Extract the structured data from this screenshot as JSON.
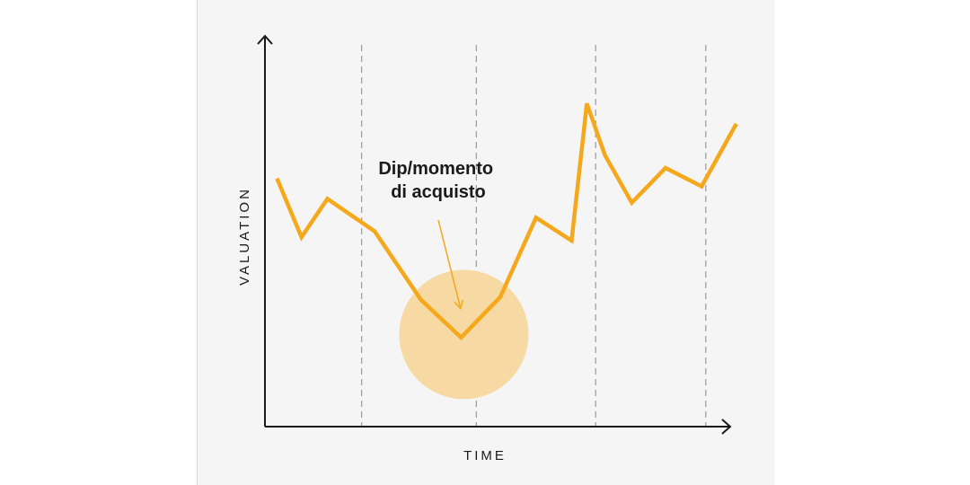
{
  "colors": {
    "line": "#f5a81c",
    "highlight": "#f7d9a4",
    "axis": "#1a1a1a",
    "guide": "#a0a0a0",
    "panel": "#f5f5f5"
  },
  "chart_data": {
    "type": "line",
    "xlabel": "TIME",
    "ylabel": "VALUATION",
    "xlim": [
      0,
      100
    ],
    "ylim": [
      0,
      100
    ],
    "grid": false,
    "series": [
      {
        "x": [
          2.6,
          7.9,
          13.5,
          23.7,
          33.7,
          42.4,
          50.9,
          58.6,
          66.3,
          69.6,
          73.5,
          79.3,
          86.6,
          94.4,
          101.9
        ],
        "y": [
          63.5,
          48.5,
          58.3,
          50,
          32.5,
          22.8,
          33.2,
          53.5,
          47.6,
          82.7,
          69.5,
          57.3,
          66.2,
          61.5,
          77.5
        ]
      }
    ],
    "vertical_guides": [
      20.9,
      45.7,
      71.5,
      95.3
    ],
    "highlight": {
      "x": 43,
      "y": 23.6
    },
    "annotation": {
      "lines": [
        "Dip/momento",
        "di acquisto"
      ],
      "target": {
        "x": 42.3,
        "y": 30.2
      }
    }
  }
}
